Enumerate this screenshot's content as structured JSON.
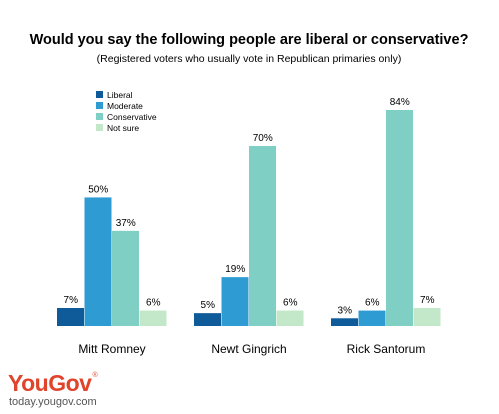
{
  "chart_data": {
    "type": "bar",
    "title": "Would you say the following people are liberal or conservative?",
    "subtitle": "(Registered voters who usually vote in Republican primaries only)",
    "categories": [
      "Mitt Romney",
      "Newt Gingrich",
      "Rick Santorum"
    ],
    "series": [
      {
        "name": "Liberal",
        "color": "#0f5a99",
        "values": [
          7,
          5,
          3
        ]
      },
      {
        "name": "Moderate",
        "color": "#2f9bd3",
        "values": [
          50,
          19,
          6
        ]
      },
      {
        "name": "Conservative",
        "color": "#7fcfc4",
        "values": [
          37,
          70,
          84
        ]
      },
      {
        "name": "Not sure",
        "color": "#c3e8c9",
        "values": [
          6,
          6,
          7
        ]
      }
    ],
    "value_suffix": "%",
    "ylim": [
      0,
      90
    ],
    "grid": false,
    "legend_position": "top-left"
  },
  "branding": {
    "logo_text": "YouGov",
    "url": "today.yougov.com"
  }
}
